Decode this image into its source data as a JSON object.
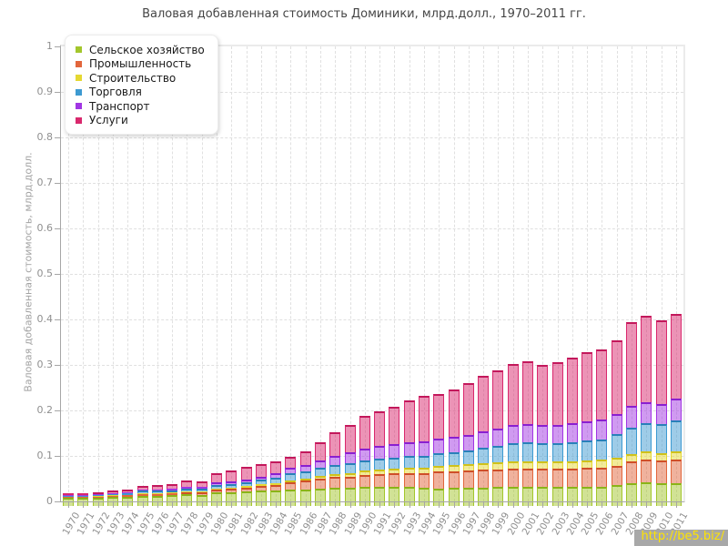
{
  "title": "Валовая добавленная стоимость Доминики, млрд.долл., 1970–2011 гг.",
  "y_axis": {
    "label": "Валовая добавленная стоимость, млрд.долл.",
    "ticks": [
      "0",
      "0.1",
      "0.2",
      "0.3",
      "0.4",
      "0.5",
      "0.6",
      "0.7",
      "0.8",
      "0.9",
      "1"
    ]
  },
  "watermark": {
    "text": "http://be5.biz/",
    "bg": "#a8a8a8",
    "color": "#ffe400"
  },
  "chart_data": {
    "type": "bar",
    "stacked": true,
    "title": "Валовая добавленная стоимость Доминики, млрд.долл., 1970–2011 гг.",
    "xlabel": "",
    "ylabel": "Валовая добавленная стоимость, млрд.долл.",
    "ylim": [
      0,
      1
    ],
    "grid": true,
    "legend_position": "top-left",
    "categories": [
      "1970",
      "1971",
      "1972",
      "1973",
      "1974",
      "1975",
      "1976",
      "1977",
      "1978",
      "1979",
      "1980",
      "1981",
      "1982",
      "1983",
      "1984",
      "1985",
      "1986",
      "1987",
      "1988",
      "1989",
      "1990",
      "1991",
      "1992",
      "1993",
      "1994",
      "1995",
      "1996",
      "1997",
      "1998",
      "1999",
      "2000",
      "2001",
      "2002",
      "2003",
      "2004",
      "2005",
      "2006",
      "2007",
      "2008",
      "2009",
      "2010",
      "2011"
    ],
    "series": [
      {
        "key": "agriculture",
        "name": "Сельское хозяйство",
        "color": "#a3c62c",
        "stroke": "#8ab418",
        "values": [
          0.008,
          0.008,
          0.009,
          0.01,
          0.011,
          0.013,
          0.013,
          0.014,
          0.016,
          0.015,
          0.02,
          0.021,
          0.023,
          0.024,
          0.025,
          0.026,
          0.027,
          0.029,
          0.031,
          0.03,
          0.032,
          0.033,
          0.033,
          0.032,
          0.03,
          0.029,
          0.03,
          0.03,
          0.031,
          0.032,
          0.033,
          0.033,
          0.032,
          0.032,
          0.032,
          0.033,
          0.033,
          0.037,
          0.04,
          0.042,
          0.041,
          0.04
        ]
      },
      {
        "key": "industry",
        "name": "Промышленность",
        "color": "#e2663c",
        "stroke": "#cf4f28",
        "values": [
          0.002,
          0.002,
          0.002,
          0.003,
          0.003,
          0.004,
          0.004,
          0.004,
          0.005,
          0.005,
          0.006,
          0.007,
          0.008,
          0.01,
          0.012,
          0.016,
          0.019,
          0.021,
          0.023,
          0.025,
          0.027,
          0.028,
          0.029,
          0.031,
          0.033,
          0.037,
          0.037,
          0.038,
          0.039,
          0.039,
          0.04,
          0.04,
          0.04,
          0.04,
          0.041,
          0.042,
          0.042,
          0.042,
          0.048,
          0.05,
          0.049,
          0.052
        ]
      },
      {
        "key": "construction",
        "name": "Строительство",
        "color": "#e5d832",
        "stroke": "#cfc11a",
        "values": [
          0.001,
          0.001,
          0.001,
          0.001,
          0.001,
          0.002,
          0.002,
          0.002,
          0.002,
          0.002,
          0.003,
          0.003,
          0.003,
          0.004,
          0.004,
          0.005,
          0.005,
          0.006,
          0.007,
          0.008,
          0.009,
          0.01,
          0.01,
          0.011,
          0.012,
          0.013,
          0.013,
          0.014,
          0.015,
          0.015,
          0.016,
          0.016,
          0.016,
          0.016,
          0.016,
          0.016,
          0.017,
          0.017,
          0.017,
          0.018,
          0.017,
          0.018
        ]
      },
      {
        "key": "trade",
        "name": "Торговля",
        "color": "#3d9ad1",
        "stroke": "#2980b9",
        "values": [
          0.002,
          0.002,
          0.002,
          0.003,
          0.003,
          0.005,
          0.005,
          0.005,
          0.006,
          0.006,
          0.008,
          0.008,
          0.009,
          0.01,
          0.012,
          0.015,
          0.016,
          0.018,
          0.02,
          0.022,
          0.023,
          0.024,
          0.025,
          0.026,
          0.026,
          0.027,
          0.028,
          0.03,
          0.033,
          0.036,
          0.04,
          0.041,
          0.04,
          0.04,
          0.041,
          0.043,
          0.044,
          0.052,
          0.058,
          0.062,
          0.063,
          0.068
        ]
      },
      {
        "key": "transport",
        "name": "Транспорт",
        "color": "#a136e3",
        "stroke": "#8a1fd0",
        "values": [
          0.001,
          0.001,
          0.002,
          0.002,
          0.002,
          0.003,
          0.003,
          0.003,
          0.004,
          0.004,
          0.005,
          0.005,
          0.006,
          0.007,
          0.009,
          0.012,
          0.013,
          0.016,
          0.019,
          0.023,
          0.026,
          0.028,
          0.03,
          0.031,
          0.032,
          0.033,
          0.034,
          0.035,
          0.037,
          0.038,
          0.04,
          0.041,
          0.041,
          0.041,
          0.042,
          0.043,
          0.044,
          0.045,
          0.048,
          0.046,
          0.045,
          0.048
        ]
      },
      {
        "key": "services",
        "name": "Услуги",
        "color": "#d9286d",
        "stroke": "#c2185b",
        "values": [
          0.004,
          0.004,
          0.005,
          0.005,
          0.006,
          0.008,
          0.01,
          0.011,
          0.014,
          0.013,
          0.021,
          0.024,
          0.027,
          0.028,
          0.027,
          0.025,
          0.03,
          0.04,
          0.052,
          0.061,
          0.072,
          0.076,
          0.082,
          0.092,
          0.1,
          0.098,
          0.104,
          0.113,
          0.122,
          0.128,
          0.134,
          0.138,
          0.132,
          0.137,
          0.144,
          0.151,
          0.155,
          0.162,
          0.184,
          0.191,
          0.184,
          0.187
        ]
      }
    ]
  }
}
